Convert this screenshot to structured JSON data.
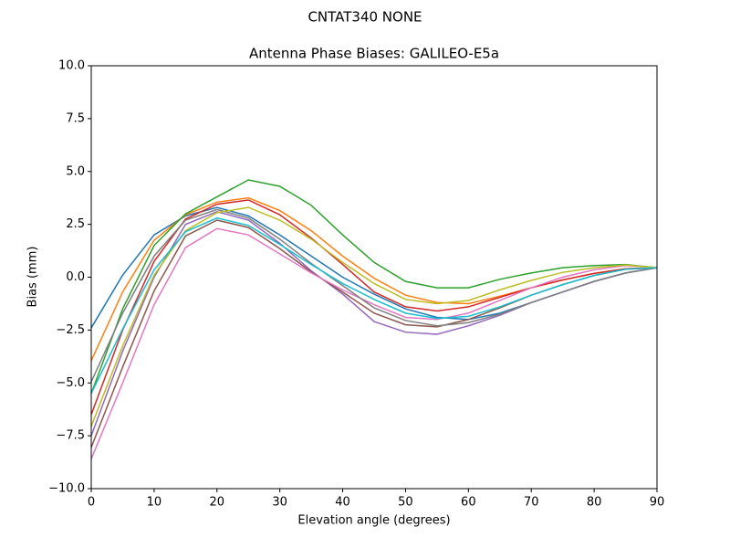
{
  "chart_data": {
    "type": "line",
    "suptitle": "CNTAT340        NONE",
    "title": "Antenna Phase Biases: GALILEO-E5a",
    "x_label": "Elevation angle (degrees)",
    "y_label": "Bias (mm)",
    "x": [
      0,
      5,
      10,
      15,
      20,
      25,
      30,
      35,
      40,
      45,
      50,
      55,
      60,
      65,
      70,
      75,
      80,
      85,
      90
    ],
    "xlim": [
      0,
      90
    ],
    "xticks": [
      0,
      10,
      20,
      30,
      40,
      50,
      60,
      70,
      80,
      90
    ],
    "ylim": [
      -10,
      10
    ],
    "yticks": [
      {
        "value": -10,
        "label": "−10.0"
      },
      {
        "value": -7.5,
        "label": "−7.5"
      },
      {
        "value": -5,
        "label": "−5.0"
      },
      {
        "value": -2.5,
        "label": "−2.5"
      },
      {
        "value": 0,
        "label": "0.0"
      },
      {
        "value": 2.5,
        "label": "2.5"
      },
      {
        "value": 5,
        "label": "5.0"
      },
      {
        "value": 7.5,
        "label": "7.5"
      },
      {
        "value": 10,
        "label": "10.0"
      }
    ],
    "grid": false,
    "series": [
      {
        "color": "#1f77b4",
        "values": [
          -2.4,
          0.1,
          2.0,
          2.9,
          3.3,
          2.9,
          2.0,
          1.0,
          0.0,
          -0.8,
          -1.5,
          -1.9,
          -2.0,
          -1.7,
          -1.2,
          -0.7,
          -0.2,
          0.2,
          0.45
        ]
      },
      {
        "color": "#ff7f0e",
        "values": [
          -3.95,
          -0.7,
          1.75,
          2.95,
          3.55,
          3.75,
          3.15,
          2.2,
          1.0,
          -0.05,
          -0.85,
          -1.2,
          -1.25,
          -0.9,
          -0.5,
          -0.13,
          0.18,
          0.4,
          0.45
        ]
      },
      {
        "color": "#2ca02c",
        "values": [
          -5.5,
          -1.5,
          1.5,
          3.0,
          3.8,
          4.6,
          4.3,
          3.4,
          2.0,
          0.7,
          -0.2,
          -0.5,
          -0.5,
          -0.1,
          0.2,
          0.45,
          0.55,
          0.6,
          0.45
        ]
      },
      {
        "color": "#d62728",
        "values": [
          -6.5,
          -2.5,
          0.75,
          2.75,
          3.45,
          3.65,
          2.95,
          1.85,
          0.6,
          -0.7,
          -1.4,
          -1.6,
          -1.4,
          -0.95,
          -0.5,
          -0.13,
          0.18,
          0.4,
          0.45
        ]
      },
      {
        "color": "#9467bd",
        "values": [
          -7.5,
          -3.5,
          0.0,
          2.5,
          3.1,
          2.7,
          1.6,
          0.3,
          -0.8,
          -2.1,
          -2.6,
          -2.7,
          -2.3,
          -1.8,
          -1.2,
          -0.7,
          -0.2,
          0.2,
          0.45
        ]
      },
      {
        "color": "#8c564b",
        "values": [
          -8.05,
          -4.25,
          -0.65,
          1.95,
          2.7,
          2.35,
          1.35,
          0.25,
          -0.7,
          -1.7,
          -2.25,
          -2.35,
          -2.0,
          -1.45,
          -0.85,
          -0.35,
          0.08,
          0.38,
          0.45
        ]
      },
      {
        "color": "#e377c2",
        "values": [
          -8.6,
          -5.0,
          -1.3,
          1.4,
          2.3,
          2.0,
          1.1,
          0.2,
          -0.6,
          -1.3,
          -1.9,
          -2.0,
          -1.7,
          -1.1,
          -0.5,
          0.0,
          0.35,
          0.55,
          0.45
        ]
      },
      {
        "color": "#7f7f7f",
        "values": [
          -4.95,
          -1.7,
          1.0,
          2.7,
          3.2,
          2.8,
          1.8,
          0.65,
          -0.4,
          -1.45,
          -2.05,
          -2.3,
          -2.15,
          -1.75,
          -1.2,
          -0.7,
          -0.2,
          0.2,
          0.45
        ]
      },
      {
        "color": "#bcbd22",
        "values": [
          -7.05,
          -3.25,
          0.1,
          2.2,
          3.05,
          3.3,
          2.7,
          1.8,
          0.7,
          -0.3,
          -1.05,
          -1.25,
          -1.1,
          -0.6,
          -0.15,
          0.23,
          0.45,
          0.58,
          0.45
        ]
      },
      {
        "color": "#17becf",
        "values": [
          -5.5,
          -2.45,
          0.35,
          2.15,
          2.8,
          2.45,
          1.55,
          0.6,
          -0.3,
          -1.05,
          -1.7,
          -1.95,
          -1.85,
          -1.4,
          -0.85,
          -0.35,
          0.08,
          0.38,
          0.45
        ]
      }
    ]
  }
}
